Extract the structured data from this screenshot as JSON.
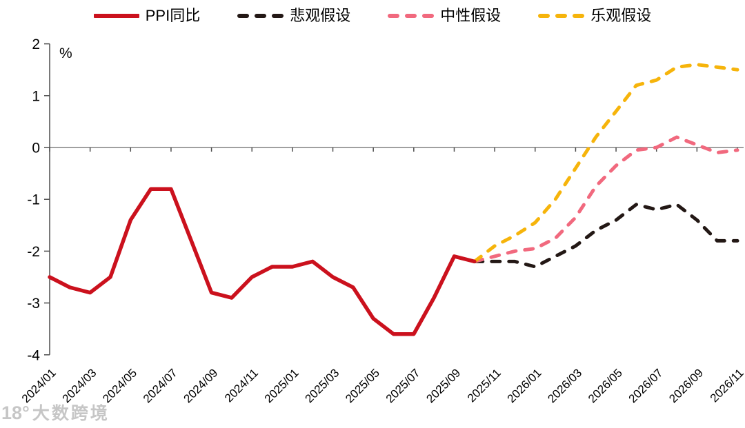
{
  "watermark": {
    "logo": "18°",
    "text": "大数跨境"
  },
  "chart_data": {
    "type": "line",
    "title": "",
    "unit_label": "%",
    "ylabel": "%",
    "xlabel": "",
    "ylim": [
      -4,
      2
    ],
    "yticks": [
      2,
      1,
      0,
      -1,
      -2,
      -3,
      -4
    ],
    "grid": "zero-line-only",
    "legend_position": "top",
    "x_tick_labels": [
      "2024/01",
      "2024/03",
      "2024/05",
      "2024/07",
      "2024/09",
      "2024/11",
      "2025/01",
      "2025/03",
      "2025/05",
      "2025/07",
      "2025/09",
      "2025/11",
      "2026/01",
      "2026/03",
      "2026/05",
      "2026/07",
      "2026/09",
      "2026/11"
    ],
    "months_per_point": 1,
    "series": [
      {
        "name": "PPI同比",
        "color": "#CB111D",
        "line_style": "solid",
        "start_month": "2024/01",
        "start_index": 0,
        "values": [
          -2.5,
          -2.7,
          -2.8,
          -2.5,
          -1.4,
          -0.8,
          -0.8,
          -1.8,
          -2.8,
          -2.9,
          -2.5,
          -2.3,
          -2.3,
          -2.2,
          -2.5,
          -2.7,
          -3.3,
          -3.6,
          -3.6,
          -2.9,
          -2.1,
          -2.2
        ]
      },
      {
        "name": "悲观假设",
        "color": "#231815",
        "line_style": "dashed",
        "start_month": "2025/10",
        "start_index": 21,
        "values": [
          -2.2,
          -2.2,
          -2.2,
          -2.3,
          -2.1,
          -1.9,
          -1.6,
          -1.4,
          -1.1,
          -1.2,
          -1.1,
          -1.4,
          -1.8,
          -1.8
        ]
      },
      {
        "name": "中性假设",
        "color": "#F1697E",
        "line_style": "dashed",
        "start_month": "2025/10",
        "start_index": 21,
        "values": [
          -2.2,
          -2.1,
          -2.0,
          -1.95,
          -1.75,
          -1.35,
          -0.75,
          -0.35,
          -0.05,
          0.0,
          0.2,
          0.05,
          -0.1,
          -0.05
        ]
      },
      {
        "name": "乐观假设",
        "color": "#F6B40B",
        "line_style": "dashed",
        "start_month": "2025/10",
        "start_index": 21,
        "values": [
          -2.2,
          -1.9,
          -1.7,
          -1.45,
          -1.0,
          -0.4,
          0.2,
          0.7,
          1.2,
          1.3,
          1.55,
          1.6,
          1.55,
          1.5
        ]
      }
    ]
  }
}
